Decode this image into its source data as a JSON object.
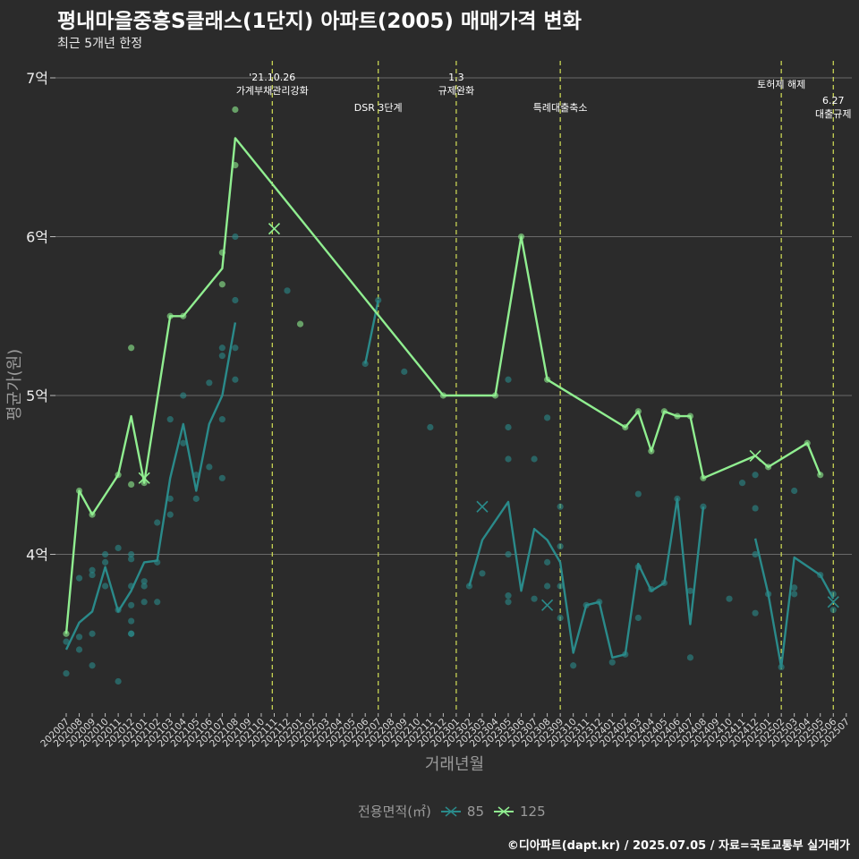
{
  "colors": {
    "background": "#2b2b2b",
    "grid": "#6a6a6a",
    "series_85": "#2a8a8a",
    "series_125": "#90ee90",
    "event_line": "#d4e157",
    "text": "#eeeeee"
  },
  "caption": "©디아파트(dapt.kr) / 2025.07.05 / 자료=국토교통부 실거래가",
  "chart_data": {
    "type": "line",
    "title": "평내마을중흥S클래스(1단지) 아파트(2005) 매매가격 변화",
    "subtitle": "최근 5개년 한정",
    "xlabel": "거래년월",
    "ylabel": "평균가(원)",
    "ylim": [
      3.0,
      7.0
    ],
    "yticks": [
      {
        "value": 4,
        "label": "4억"
      },
      {
        "value": 5,
        "label": "5억"
      },
      {
        "value": 6,
        "label": "6억"
      },
      {
        "value": 7,
        "label": "7억"
      }
    ],
    "grid": true,
    "legend_position": "bottom",
    "legend_title": "전용면적(㎡)",
    "categories": [
      "202007",
      "202008",
      "202009",
      "202010",
      "202011",
      "202012",
      "202101",
      "202102",
      "202103",
      "202104",
      "202105",
      "202106",
      "202107",
      "202108",
      "202109",
      "202110",
      "202111",
      "202112",
      "202201",
      "202202",
      "202203",
      "202204",
      "202205",
      "202206",
      "202207",
      "202208",
      "202209",
      "202210",
      "202211",
      "202212",
      "202301",
      "202302",
      "202303",
      "202304",
      "202305",
      "202306",
      "202307",
      "202308",
      "202309",
      "202310",
      "202311",
      "202312",
      "202401",
      "202402",
      "202403",
      "202404",
      "202405",
      "202406",
      "202407",
      "202408",
      "202409",
      "202410",
      "202411",
      "202412",
      "202501",
      "202502",
      "202503",
      "202504",
      "202505",
      "202506",
      "202507"
    ],
    "series": [
      {
        "name": "85",
        "color": "#2a8a8a",
        "line_segments": [
          [
            [
              0,
              3.4
            ],
            [
              1,
              3.57
            ],
            [
              2,
              3.64
            ],
            [
              3,
              3.92
            ],
            [
              4,
              3.64
            ],
            [
              5,
              3.77
            ],
            [
              6,
              3.95
            ],
            [
              7,
              3.96
            ],
            [
              8,
              4.48
            ],
            [
              9,
              4.82
            ],
            [
              10,
              4.4
            ],
            [
              11,
              4.82
            ],
            [
              12,
              5.0
            ],
            [
              13,
              5.46
            ]
          ],
          [
            [
              23,
              5.2
            ],
            [
              24,
              5.6
            ]
          ],
          [
            [
              31,
              3.8
            ],
            [
              32,
              4.09
            ],
            [
              34,
              4.33
            ],
            [
              35,
              3.77
            ],
            [
              36,
              4.16
            ],
            [
              37,
              4.09
            ],
            [
              38,
              3.95
            ],
            [
              39,
              3.38
            ],
            [
              40,
              3.68
            ],
            [
              41,
              3.7
            ],
            [
              42,
              3.35
            ],
            [
              43,
              3.37
            ],
            [
              44,
              3.94
            ],
            [
              45,
              3.77
            ],
            [
              46,
              3.82
            ],
            [
              47,
              4.35
            ],
            [
              48,
              3.56
            ],
            [
              49,
              4.3
            ]
          ],
          [
            [
              53,
              4.1
            ],
            [
              54,
              3.75
            ],
            [
              55,
              3.29
            ],
            [
              56,
              3.98
            ],
            [
              58,
              3.87
            ],
            [
              59,
              3.72
            ]
          ]
        ],
        "points": [
          [
            0,
            3.25
          ],
          [
            0,
            3.45
          ],
          [
            1,
            3.4
          ],
          [
            1,
            3.48
          ],
          [
            1,
            3.85
          ],
          [
            2,
            3.3
          ],
          [
            2,
            3.5
          ],
          [
            2,
            3.87
          ],
          [
            2,
            3.9
          ],
          [
            3,
            3.8
          ],
          [
            3,
            3.95
          ],
          [
            3,
            4.0
          ],
          [
            4,
            3.2
          ],
          [
            4,
            3.65
          ],
          [
            4,
            4.04
          ],
          [
            5,
            3.5
          ],
          [
            5,
            3.5
          ],
          [
            5,
            3.58
          ],
          [
            5,
            3.68
          ],
          [
            5,
            3.8
          ],
          [
            5,
            3.97
          ],
          [
            5,
            4.0
          ],
          [
            6,
            3.7
          ],
          [
            6,
            3.8
          ],
          [
            6,
            3.83
          ],
          [
            7,
            3.7
          ],
          [
            7,
            3.95
          ],
          [
            7,
            4.2
          ],
          [
            8,
            4.25
          ],
          [
            8,
            4.35
          ],
          [
            8,
            4.85
          ],
          [
            9,
            4.7
          ],
          [
            9,
            5.0
          ],
          [
            10,
            4.35
          ],
          [
            10,
            4.5
          ],
          [
            11,
            4.55
          ],
          [
            11,
            5.08
          ],
          [
            12,
            4.48
          ],
          [
            12,
            4.85
          ],
          [
            12,
            5.25
          ],
          [
            12,
            5.3
          ],
          [
            13,
            5.1
          ],
          [
            13,
            5.3
          ],
          [
            13,
            5.6
          ],
          [
            13,
            6.0
          ],
          [
            17,
            5.66
          ],
          [
            23,
            5.2
          ],
          [
            24,
            5.6
          ],
          [
            26,
            5.15
          ],
          [
            28,
            4.8
          ],
          [
            31,
            3.8
          ],
          [
            32,
            3.88
          ],
          [
            34,
            3.7
          ],
          [
            34,
            3.74
          ],
          [
            34,
            4.0
          ],
          [
            34,
            4.6
          ],
          [
            34,
            4.8
          ],
          [
            34,
            5.1
          ],
          [
            36,
            3.72
          ],
          [
            36,
            4.6
          ],
          [
            37,
            3.8
          ],
          [
            37,
            3.95
          ],
          [
            37,
            4.86
          ],
          [
            38,
            3.6
          ],
          [
            38,
            3.8
          ],
          [
            38,
            4.05
          ],
          [
            38,
            4.3
          ],
          [
            39,
            3.3
          ],
          [
            40,
            3.68
          ],
          [
            41,
            3.7
          ],
          [
            42,
            3.32
          ],
          [
            43,
            3.37
          ],
          [
            44,
            3.6
          ],
          [
            44,
            3.92
          ],
          [
            44,
            4.38
          ],
          [
            45,
            3.78
          ],
          [
            46,
            3.82
          ],
          [
            47,
            4.35
          ],
          [
            48,
            3.35
          ],
          [
            48,
            3.77
          ],
          [
            49,
            4.3
          ],
          [
            51,
            3.72
          ],
          [
            52,
            4.45
          ],
          [
            53,
            3.63
          ],
          [
            53,
            4.0
          ],
          [
            53,
            4.29
          ],
          [
            53,
            4.5
          ],
          [
            54,
            3.75
          ],
          [
            55,
            3.29
          ],
          [
            56,
            3.75
          ],
          [
            56,
            3.79
          ],
          [
            56,
            4.4
          ],
          [
            58,
            3.87
          ],
          [
            59,
            3.65
          ],
          [
            59,
            3.75
          ]
        ],
        "cancelled": [
          [
            32,
            4.3
          ],
          [
            37,
            3.68
          ],
          [
            59,
            3.7
          ]
        ]
      },
      {
        "name": "125",
        "color": "#90ee90",
        "line_segments": [
          [
            [
              0,
              3.5
            ],
            [
              1,
              4.4
            ],
            [
              2,
              4.25
            ],
            [
              4,
              4.5
            ],
            [
              5,
              4.87
            ],
            [
              6,
              4.45
            ],
            [
              8,
              5.5
            ],
            [
              9,
              5.5
            ],
            [
              12,
              5.8
            ],
            [
              13,
              6.62
            ],
            [
              29,
              5.0
            ],
            [
              33,
              5.0
            ],
            [
              35,
              6.0
            ],
            [
              37,
              5.1
            ],
            [
              43,
              4.8
            ],
            [
              44,
              4.9
            ],
            [
              45,
              4.65
            ],
            [
              46,
              4.9
            ],
            [
              47,
              4.87
            ],
            [
              48,
              4.87
            ],
            [
              49,
              4.48
            ],
            [
              53,
              4.62
            ],
            [
              54,
              4.55
            ],
            [
              57,
              4.7
            ],
            [
              58,
              4.5
            ]
          ]
        ],
        "points": [
          [
            0,
            3.5
          ],
          [
            1,
            4.4
          ],
          [
            2,
            4.25
          ],
          [
            4,
            4.5
          ],
          [
            5,
            4.44
          ],
          [
            5,
            5.3
          ],
          [
            6,
            4.45
          ],
          [
            8,
            5.5
          ],
          [
            9,
            5.5
          ],
          [
            12,
            5.7
          ],
          [
            12,
            5.9
          ],
          [
            13,
            6.45
          ],
          [
            13,
            6.8
          ],
          [
            18,
            5.45
          ],
          [
            29,
            5.0
          ],
          [
            33,
            5.0
          ],
          [
            35,
            6.0
          ],
          [
            37,
            5.1
          ],
          [
            43,
            4.8
          ],
          [
            44,
            4.9
          ],
          [
            45,
            4.65
          ],
          [
            46,
            4.9
          ],
          [
            47,
            4.87
          ],
          [
            48,
            4.87
          ],
          [
            49,
            4.48
          ],
          [
            54,
            4.55
          ],
          [
            57,
            4.7
          ],
          [
            58,
            4.5
          ]
        ],
        "cancelled": [
          [
            6,
            4.48
          ],
          [
            16,
            6.05
          ],
          [
            53,
            4.62
          ]
        ]
      }
    ],
    "events": [
      {
        "x": 15.85,
        "label": "'21.10.26\n가계부채관리강화",
        "row": 0
      },
      {
        "x": 24.0,
        "label": "DSR 3단계",
        "row": 1
      },
      {
        "x": 30.0,
        "label": "1.3\n규제완화",
        "row": 0
      },
      {
        "x": 38.0,
        "label": "특례대출축소",
        "row": 1
      },
      {
        "x": 55.0,
        "label": "토허제 해제",
        "row": 2
      },
      {
        "x": 59.0,
        "label": "6.27\n대출규제",
        "row": 3
      }
    ]
  }
}
